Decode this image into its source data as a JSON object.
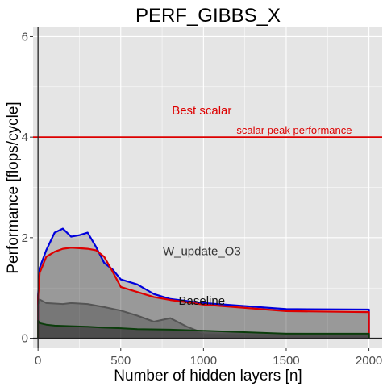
{
  "chart_data": {
    "type": "line",
    "title": "PERF_GIBBS_X",
    "xlabel": "Number of hidden layers [n]",
    "ylabel": "Performance [flops/cycle]",
    "xlim": [
      -30,
      2080
    ],
    "ylim": [
      -0.2,
      6.2
    ],
    "xticks": [
      0,
      500,
      1000,
      1500,
      2000
    ],
    "xtick_labels": [
      "0",
      "500",
      "1000",
      "1500",
      "2000"
    ],
    "yticks": [
      0,
      2,
      4,
      6
    ],
    "ytick_labels": [
      "0",
      "2",
      "4",
      "6"
    ],
    "grid": true,
    "legend": "none",
    "colors": {
      "panel": "#e5e5e5",
      "grid": "#ffffff",
      "blue_series": "#0000dd",
      "red_series": "#dd0000",
      "dark_series": "#555555",
      "green_series": "#0b3d0b",
      "peak_line": "#dd0000",
      "axis_line": "#222222"
    },
    "series": [
      {
        "key": "blue",
        "x": [
          0,
          10,
          50,
          100,
          150,
          200,
          250,
          300,
          350,
          400,
          450,
          500,
          600,
          700,
          800,
          1000,
          1500,
          2000
        ],
        "y": [
          0.85,
          1.4,
          1.75,
          2.1,
          2.18,
          2.02,
          2.05,
          2.1,
          1.82,
          1.5,
          1.37,
          1.17,
          1.07,
          0.88,
          0.78,
          0.7,
          0.58,
          0.57
        ]
      },
      {
        "key": "red",
        "x": [
          0,
          10,
          50,
          100,
          150,
          200,
          250,
          300,
          350,
          400,
          450,
          500,
          600,
          700,
          800,
          1000,
          1500,
          2000
        ],
        "y": [
          0.82,
          1.3,
          1.62,
          1.72,
          1.78,
          1.8,
          1.79,
          1.78,
          1.75,
          1.62,
          1.33,
          1.02,
          0.92,
          0.82,
          0.76,
          0.67,
          0.54,
          0.52
        ]
      },
      {
        "key": "dark",
        "x": [
          0,
          10,
          50,
          100,
          150,
          200,
          300,
          400,
          500,
          600,
          700,
          800,
          900,
          1000,
          1500,
          2000
        ],
        "y": [
          0.65,
          0.77,
          0.7,
          0.69,
          0.68,
          0.7,
          0.68,
          0.62,
          0.55,
          0.45,
          0.33,
          0.4,
          0.23,
          0.1,
          0.09,
          0.08
        ]
      },
      {
        "key": "green",
        "x": [
          0,
          10,
          50,
          100,
          200,
          300,
          400,
          500,
          600,
          800,
          1000,
          1500,
          2000
        ],
        "y": [
          0.35,
          0.3,
          0.27,
          0.25,
          0.24,
          0.23,
          0.21,
          0.2,
          0.18,
          0.17,
          0.15,
          0.09,
          0.09
        ]
      }
    ],
    "reference_lines": [
      {
        "y": 4,
        "label": "scalar peak performance"
      }
    ],
    "annotations": [
      {
        "text": "Best scalar",
        "x": 990,
        "y": 4.45,
        "color": "#dd0000",
        "size": 15
      },
      {
        "text": "W_update_O3",
        "x": 990,
        "y": 1.65,
        "color": "#333333",
        "size": 15
      },
      {
        "text": "Baseline",
        "x": 990,
        "y": 0.67,
        "color": "#111111",
        "size": 15
      }
    ]
  }
}
